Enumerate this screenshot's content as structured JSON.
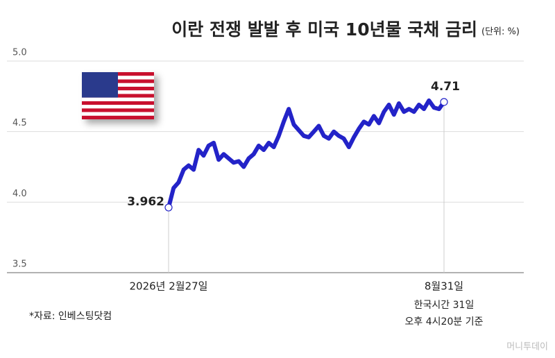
{
  "chart_data": {
    "type": "line",
    "title": "이란 전쟁 발발 후 미국 10년물 국채 금리",
    "unit": "(단위: %)",
    "source": "*자료: 인베스팅닷컴",
    "annotations": [
      "한국시간 31일",
      "오후 4시20분 기준"
    ],
    "watermark": "머니투데이",
    "categories": [
      "2026년 2월27일",
      null,
      null,
      null,
      null,
      null,
      null,
      null,
      null,
      null,
      null,
      null,
      null,
      null,
      null,
      null,
      null,
      null,
      null,
      null,
      null,
      null,
      null,
      null,
      null,
      null,
      null,
      null,
      null,
      null,
      null,
      null,
      null,
      null,
      null,
      null,
      null,
      null,
      null,
      null,
      null,
      null,
      null,
      null,
      null,
      null,
      null,
      null,
      null,
      null,
      null,
      null,
      null,
      null,
      null,
      "8월31일"
    ],
    "series": [
      {
        "name": "미국 10년물 국채 금리",
        "color": "#2323c8",
        "values": [
          3.962,
          4.1,
          4.14,
          4.23,
          4.26,
          4.23,
          4.37,
          4.33,
          4.4,
          4.42,
          4.3,
          4.34,
          4.31,
          4.28,
          4.29,
          4.25,
          4.31,
          4.34,
          4.4,
          4.37,
          4.42,
          4.39,
          4.47,
          4.57,
          4.66,
          4.55,
          4.51,
          4.47,
          4.46,
          4.5,
          4.54,
          4.47,
          4.45,
          4.5,
          4.47,
          4.45,
          4.39,
          4.46,
          4.52,
          4.57,
          4.55,
          4.61,
          4.56,
          4.64,
          4.69,
          4.62,
          4.7,
          4.64,
          4.66,
          4.64,
          4.69,
          4.66,
          4.72,
          4.67,
          4.66,
          4.71
        ]
      }
    ],
    "ylim": [
      3.5,
      5.0
    ],
    "yticks": [
      3.5,
      {
        "value": 4,
        "label": "4.0"
      },
      4.5,
      {
        "value": 5,
        "label": "5.0"
      }
    ],
    "grid": true
  }
}
